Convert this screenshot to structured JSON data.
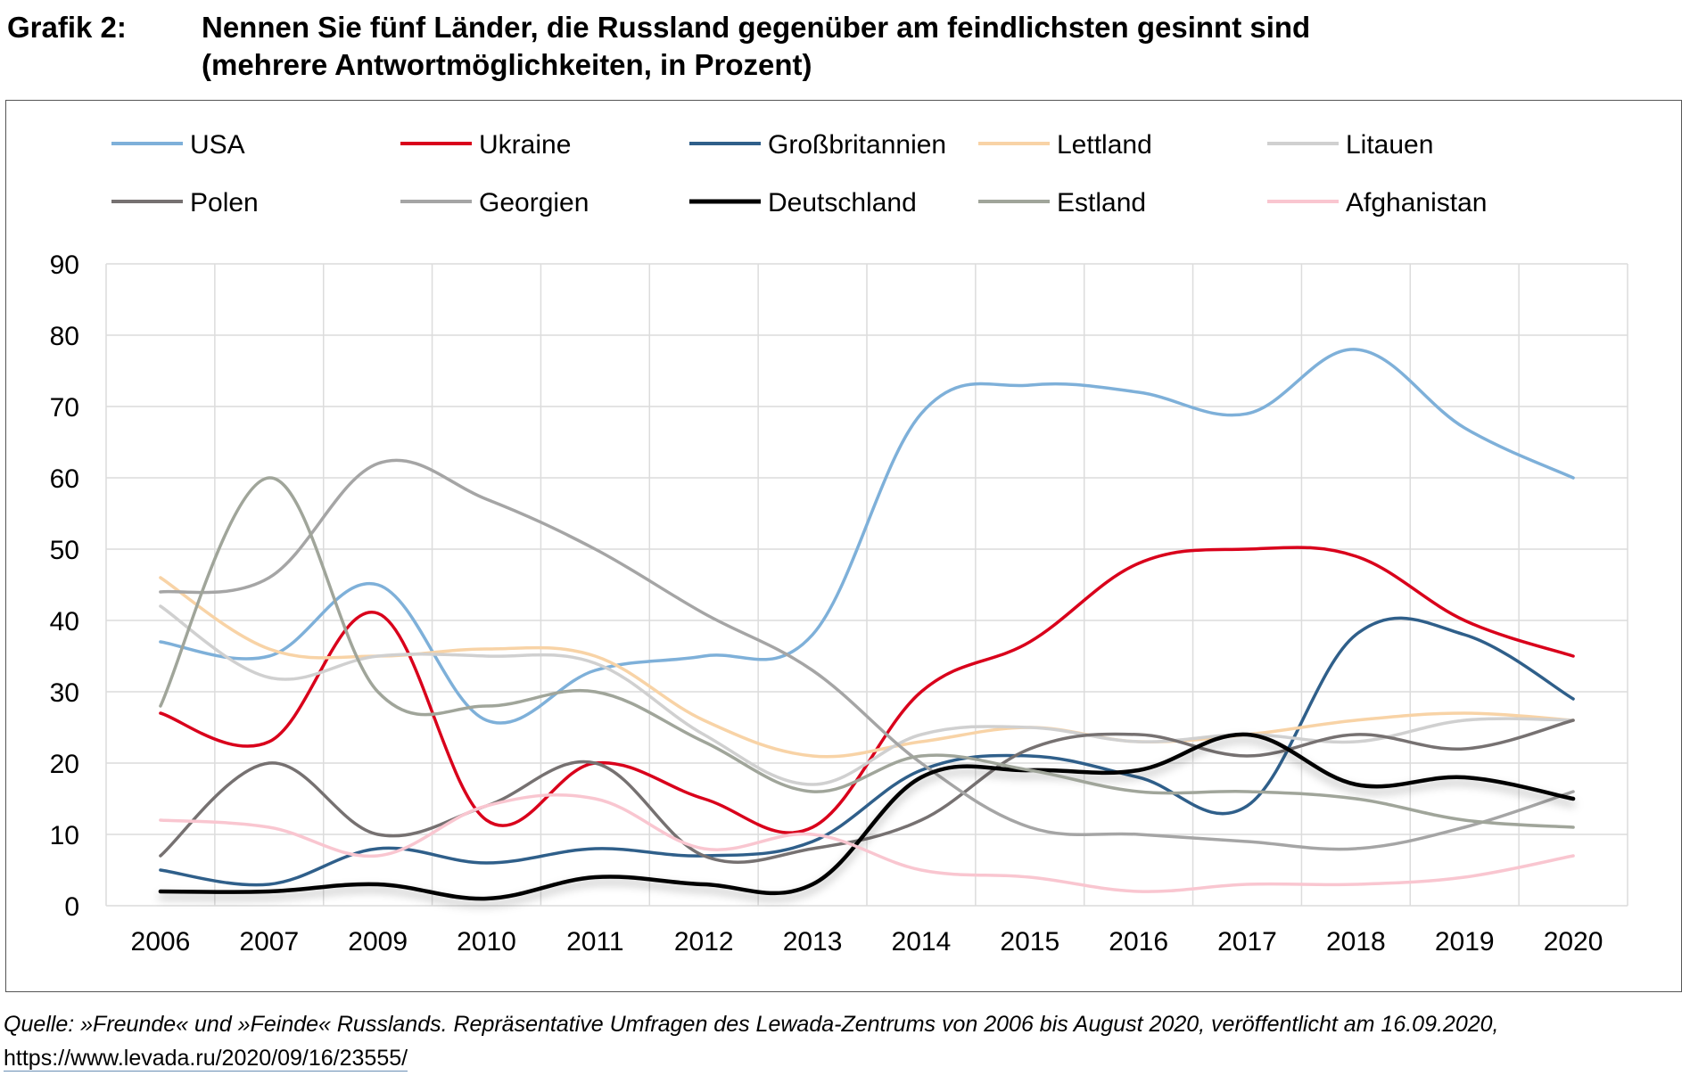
{
  "title": {
    "label": "Grafik 2:",
    "line1": "Nennen Sie fünf Länder, die Russland gegenüber am feindlichsten gesinnt sind",
    "line2": "(mehrere Antwortmöglichkeiten, in Prozent)"
  },
  "footer": {
    "source": "Quelle: »Freunde« und »Feinde« Russlands. Repräsentative Umfragen des Lewada-Zentrums von 2006 bis August 2020, veröffentlicht am 16.09.2020,",
    "link": "https://www.levada.ru/2020/09/16/23555/"
  },
  "chart_data": {
    "type": "line",
    "title": "Nennen Sie fünf Länder, die Russland gegenüber am feindlichsten gesinnt sind (mehrere Antwortmöglichkeiten, in Prozent)",
    "xlabel": "",
    "ylabel": "",
    "ylim": [
      0,
      90
    ],
    "yticks": [
      0,
      10,
      20,
      30,
      40,
      50,
      60,
      70,
      80,
      90
    ],
    "grid": true,
    "smooth": true,
    "legend_position": "top",
    "categories": [
      "2006",
      "2007",
      "2009",
      "2010",
      "2011",
      "2012",
      "2013",
      "2014",
      "2015",
      "2016",
      "2017",
      "2018",
      "2019",
      "2020"
    ],
    "series": [
      {
        "name": "USA",
        "color": "#7eb0d9",
        "values": [
          37,
          35,
          45,
          26,
          33,
          35,
          38,
          69,
          73,
          72,
          69,
          78,
          67,
          60
        ]
      },
      {
        "name": "Ukraine",
        "color": "#d9001b",
        "values": [
          27,
          23,
          41,
          12,
          20,
          15,
          11,
          30,
          37,
          48,
          50,
          49,
          40,
          35
        ]
      },
      {
        "name": "Großbritannien",
        "color": "#2f5f8a",
        "values": [
          5,
          3,
          8,
          6,
          8,
          7,
          9,
          19,
          21,
          18,
          14,
          38,
          38,
          29
        ]
      },
      {
        "name": "Lettland",
        "color": "#f8d3a6",
        "values": [
          46,
          36,
          35,
          36,
          35,
          26,
          21,
          23,
          25,
          23,
          24,
          26,
          27,
          26
        ]
      },
      {
        "name": "Litauen",
        "color": "#d0d0d0",
        "values": [
          42,
          32,
          35,
          35,
          34,
          24,
          17,
          24,
          25,
          23,
          24,
          23,
          26,
          26
        ]
      },
      {
        "name": "Polen",
        "color": "#767171",
        "values": [
          7,
          20,
          10,
          14,
          20,
          7,
          8,
          12,
          22,
          24,
          21,
          24,
          22,
          26
        ]
      },
      {
        "name": "Georgien",
        "color": "#a5a5a5",
        "values": [
          44,
          46,
          62,
          57,
          50,
          41,
          33,
          20,
          11,
          10,
          9,
          8,
          11,
          16
        ]
      },
      {
        "name": "Deutschland",
        "color": "#000000",
        "values": [
          2,
          2,
          3,
          1,
          4,
          3,
          3,
          18,
          19,
          19,
          24,
          17,
          18,
          15
        ]
      },
      {
        "name": "Estland",
        "color": "#a0a59a",
        "values": [
          28,
          60,
          30,
          28,
          30,
          23,
          16,
          21,
          19,
          16,
          16,
          15,
          12,
          11
        ]
      },
      {
        "name": "Afghanistan",
        "color": "#f9c6d0",
        "values": [
          12,
          11,
          7,
          14,
          15,
          8,
          10,
          5,
          4,
          2,
          3,
          3,
          4,
          7
        ]
      }
    ]
  }
}
